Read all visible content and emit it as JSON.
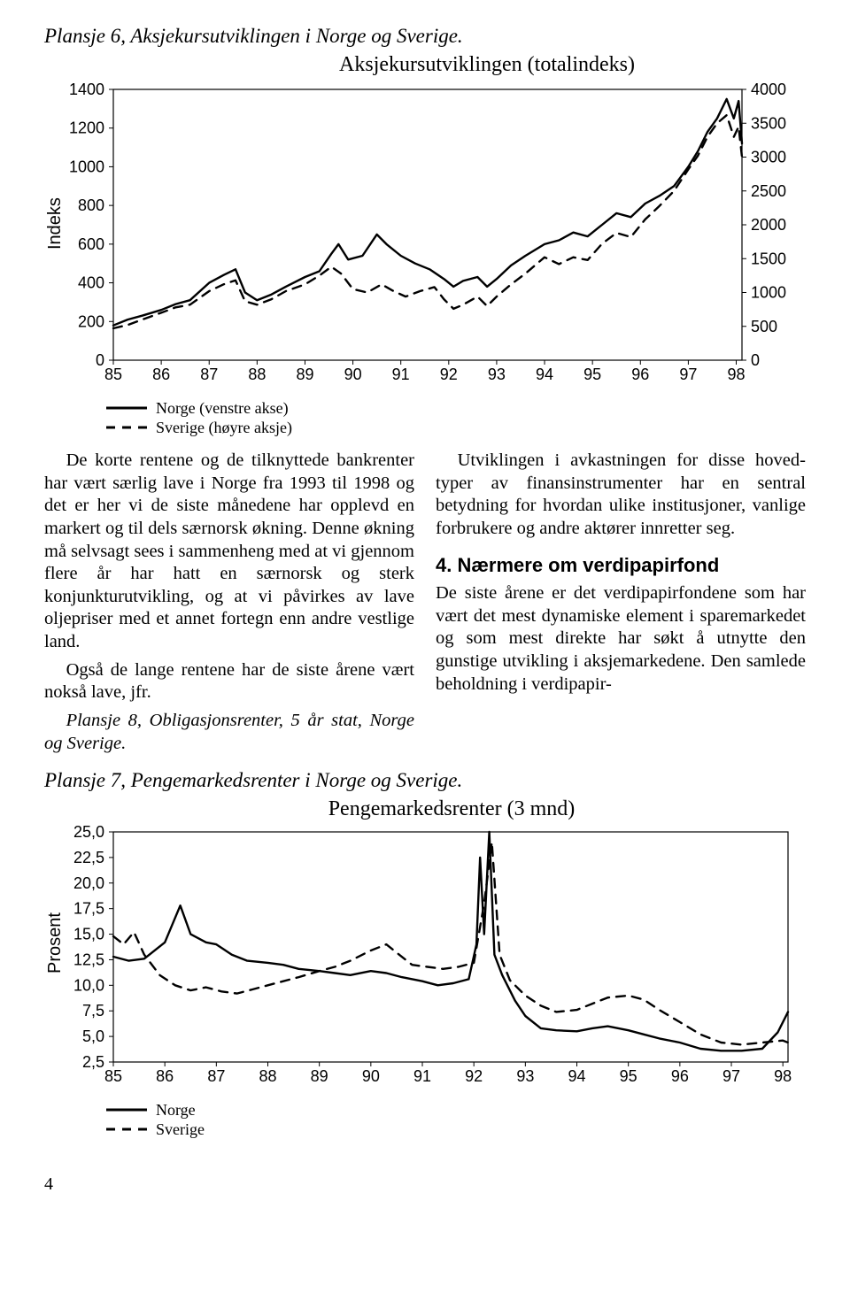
{
  "plansje6": {
    "title": "Plansje 6, Aksjekursutviklingen i Norge og Sverige.",
    "chart_title": "Aksjekursutviklingen (totalindeks)",
    "y_label_left": "Indeks",
    "x_ticks": [
      "85",
      "86",
      "87",
      "88",
      "89",
      "90",
      "91",
      "92",
      "93",
      "94",
      "95",
      "96",
      "97",
      "98"
    ],
    "left_axis": {
      "min": 0,
      "max": 1400,
      "ticks": [
        0,
        200,
        400,
        600,
        800,
        1000,
        1200,
        1400
      ]
    },
    "right_axis": {
      "min": 0,
      "max": 4000,
      "ticks": [
        0,
        500,
        1000,
        1500,
        2000,
        2500,
        3000,
        3500,
        4000
      ]
    },
    "legend": [
      {
        "label": "Norge (venstre akse)",
        "style": "solid"
      },
      {
        "label": "Sverige (høyre aksje)",
        "style": "dashed"
      }
    ],
    "norge": [
      [
        0,
        180
      ],
      [
        0.3,
        210
      ],
      [
        0.6,
        230
      ],
      [
        1,
        260
      ],
      [
        1.3,
        290
      ],
      [
        1.6,
        310
      ],
      [
        2,
        400
      ],
      [
        2.3,
        440
      ],
      [
        2.55,
        470
      ],
      [
        2.75,
        350
      ],
      [
        3,
        310
      ],
      [
        3.3,
        340
      ],
      [
        3.6,
        380
      ],
      [
        4,
        430
      ],
      [
        4.3,
        460
      ],
      [
        4.55,
        550
      ],
      [
        4.7,
        600
      ],
      [
        4.9,
        520
      ],
      [
        5.2,
        540
      ],
      [
        5.5,
        650
      ],
      [
        5.7,
        600
      ],
      [
        6,
        540
      ],
      [
        6.3,
        500
      ],
      [
        6.6,
        470
      ],
      [
        6.9,
        420
      ],
      [
        7.1,
        380
      ],
      [
        7.3,
        410
      ],
      [
        7.6,
        430
      ],
      [
        7.8,
        380
      ],
      [
        8,
        420
      ],
      [
        8.3,
        490
      ],
      [
        8.6,
        540
      ],
      [
        9,
        600
      ],
      [
        9.3,
        620
      ],
      [
        9.6,
        660
      ],
      [
        9.9,
        640
      ],
      [
        10.2,
        700
      ],
      [
        10.5,
        760
      ],
      [
        10.8,
        740
      ],
      [
        11.1,
        810
      ],
      [
        11.4,
        850
      ],
      [
        11.7,
        900
      ],
      [
        12,
        1000
      ],
      [
        12.2,
        1080
      ],
      [
        12.4,
        1180
      ],
      [
        12.6,
        1250
      ],
      [
        12.8,
        1350
      ],
      [
        12.95,
        1250
      ],
      [
        13.05,
        1340
      ],
      [
        13.12,
        1120
      ]
    ],
    "sverige": [
      [
        0,
        470
      ],
      [
        0.3,
        520
      ],
      [
        0.6,
        600
      ],
      [
        1,
        700
      ],
      [
        1.3,
        780
      ],
      [
        1.6,
        820
      ],
      [
        2,
        1020
      ],
      [
        2.3,
        1120
      ],
      [
        2.55,
        1180
      ],
      [
        2.75,
        870
      ],
      [
        3,
        820
      ],
      [
        3.3,
        900
      ],
      [
        3.6,
        1020
      ],
      [
        4,
        1120
      ],
      [
        4.3,
        1250
      ],
      [
        4.55,
        1380
      ],
      [
        4.75,
        1280
      ],
      [
        5,
        1050
      ],
      [
        5.3,
        1000
      ],
      [
        5.6,
        1120
      ],
      [
        5.85,
        1020
      ],
      [
        6.1,
        940
      ],
      [
        6.4,
        1020
      ],
      [
        6.7,
        1080
      ],
      [
        6.9,
        900
      ],
      [
        7.1,
        760
      ],
      [
        7.3,
        820
      ],
      [
        7.6,
        940
      ],
      [
        7.8,
        800
      ],
      [
        8,
        940
      ],
      [
        8.3,
        1120
      ],
      [
        8.6,
        1280
      ],
      [
        9,
        1520
      ],
      [
        9.3,
        1420
      ],
      [
        9.6,
        1520
      ],
      [
        9.9,
        1480
      ],
      [
        10.2,
        1720
      ],
      [
        10.5,
        1880
      ],
      [
        10.8,
        1820
      ],
      [
        11.1,
        2080
      ],
      [
        11.4,
        2280
      ],
      [
        11.7,
        2500
      ],
      [
        12,
        2820
      ],
      [
        12.2,
        3020
      ],
      [
        12.4,
        3300
      ],
      [
        12.6,
        3500
      ],
      [
        12.8,
        3620
      ],
      [
        12.95,
        3300
      ],
      [
        13.05,
        3450
      ],
      [
        13.12,
        3000
      ]
    ],
    "colors": {
      "line": "#000000",
      "axis": "#000000",
      "bg": "#ffffff"
    },
    "stroke_width": 2.4,
    "tick_font_size": 18
  },
  "body": {
    "left_p1": "De korte rentene og de tilknyttede bankren­ter har vært særlig lave i Norge fra 1993 til 1998 og det er her vi de siste månedene har opplevd en markert og til dels særnorsk økning. Denne økning må selvsagt sees i sammenheng med at vi gjennom flere år har hatt en særnorsk og sterk konjunkturutvikling, og at vi påvirkes av lave oljepriser med et annet fortegn enn andre vestlige land.",
    "left_p2": "Også de lange rentene har de siste årene vært nokså lave, jfr.",
    "left_p3": "Plansje 8, Obligasjonsrenter, 5 år stat, Norge og Sverige.",
    "right_p1": "Utviklingen i avkastningen for disse hoved­typer av finansinstrumenter har en sentral betydning for hvordan ulike institusjoner, vanlige forbrukere og andre aktører innretter seg.",
    "right_head": "4. Nærmere om verdipapirfond",
    "right_p2": "De siste årene er det verdipapirfondene som har vært det mest dynamiske element i spare­markedet og som mest direkte har søkt å utnytte den gunstige utvikling i aksjemarke­dene. Den samlede beholdning i verdipapir-"
  },
  "plansje7": {
    "title": "Plansje 7, Pengemarkedsrenter i Norge og Sverige.",
    "chart_title": "Pengemarkedsrenter (3 mnd)",
    "y_label_left": "Prosent",
    "x_ticks": [
      "85",
      "86",
      "87",
      "88",
      "89",
      "90",
      "91",
      "92",
      "93",
      "94",
      "95",
      "96",
      "97",
      "98"
    ],
    "y_axis": {
      "min": 2.5,
      "max": 25.0,
      "ticks": [
        2.5,
        5.0,
        7.5,
        10.0,
        12.5,
        15.0,
        17.5,
        20.0,
        22.5,
        25.0
      ]
    },
    "legend": [
      {
        "label": "Norge",
        "style": "solid"
      },
      {
        "label": "Sverige",
        "style": "dashed"
      }
    ],
    "norge": [
      [
        0,
        12.8
      ],
      [
        0.3,
        12.4
      ],
      [
        0.6,
        12.6
      ],
      [
        1,
        14.2
      ],
      [
        1.3,
        17.8
      ],
      [
        1.5,
        15.0
      ],
      [
        1.8,
        14.2
      ],
      [
        2,
        14.0
      ],
      [
        2.3,
        13.0
      ],
      [
        2.6,
        12.4
      ],
      [
        3,
        12.2
      ],
      [
        3.3,
        12.0
      ],
      [
        3.6,
        11.6
      ],
      [
        4,
        11.4
      ],
      [
        4.3,
        11.2
      ],
      [
        4.6,
        11.0
      ],
      [
        5,
        11.4
      ],
      [
        5.3,
        11.2
      ],
      [
        5.6,
        10.8
      ],
      [
        6,
        10.4
      ],
      [
        6.3,
        10.0
      ],
      [
        6.6,
        10.2
      ],
      [
        6.9,
        10.6
      ],
      [
        7.05,
        14.0
      ],
      [
        7.12,
        22.5
      ],
      [
        7.2,
        15.0
      ],
      [
        7.3,
        25.0
      ],
      [
        7.4,
        13.0
      ],
      [
        7.55,
        11.0
      ],
      [
        7.8,
        8.5
      ],
      [
        8,
        7.0
      ],
      [
        8.3,
        5.8
      ],
      [
        8.6,
        5.6
      ],
      [
        9,
        5.5
      ],
      [
        9.3,
        5.8
      ],
      [
        9.6,
        6.0
      ],
      [
        10,
        5.6
      ],
      [
        10.3,
        5.2
      ],
      [
        10.6,
        4.8
      ],
      [
        11,
        4.4
      ],
      [
        11.4,
        3.8
      ],
      [
        11.8,
        3.6
      ],
      [
        12.2,
        3.6
      ],
      [
        12.6,
        3.8
      ],
      [
        12.9,
        5.4
      ],
      [
        13.1,
        7.4
      ]
    ],
    "sverige": [
      [
        0,
        14.8
      ],
      [
        0.2,
        14.0
      ],
      [
        0.4,
        15.2
      ],
      [
        0.6,
        13.0
      ],
      [
        0.9,
        11.0
      ],
      [
        1.2,
        10.0
      ],
      [
        1.5,
        9.5
      ],
      [
        1.8,
        9.8
      ],
      [
        2.1,
        9.4
      ],
      [
        2.4,
        9.2
      ],
      [
        2.7,
        9.6
      ],
      [
        3,
        10.0
      ],
      [
        3.3,
        10.4
      ],
      [
        3.6,
        10.8
      ],
      [
        4,
        11.4
      ],
      [
        4.3,
        11.8
      ],
      [
        4.6,
        12.4
      ],
      [
        5,
        13.4
      ],
      [
        5.3,
        14.0
      ],
      [
        5.55,
        13.0
      ],
      [
        5.8,
        12.0
      ],
      [
        6.1,
        11.8
      ],
      [
        6.4,
        11.6
      ],
      [
        6.7,
        11.8
      ],
      [
        7,
        12.2
      ],
      [
        7.2,
        18.0
      ],
      [
        7.35,
        24.0
      ],
      [
        7.5,
        13.0
      ],
      [
        7.7,
        10.5
      ],
      [
        8,
        9.0
      ],
      [
        8.3,
        8.0
      ],
      [
        8.6,
        7.4
      ],
      [
        9,
        7.6
      ],
      [
        9.3,
        8.2
      ],
      [
        9.6,
        8.8
      ],
      [
        10,
        9.0
      ],
      [
        10.3,
        8.6
      ],
      [
        10.6,
        7.6
      ],
      [
        11,
        6.4
      ],
      [
        11.4,
        5.2
      ],
      [
        11.8,
        4.4
      ],
      [
        12.2,
        4.2
      ],
      [
        12.6,
        4.4
      ],
      [
        13,
        4.6
      ],
      [
        13.1,
        4.4
      ]
    ],
    "colors": {
      "line": "#000000"
    },
    "stroke_width": 2.4,
    "tick_font_size": 18
  },
  "page_number": "4"
}
